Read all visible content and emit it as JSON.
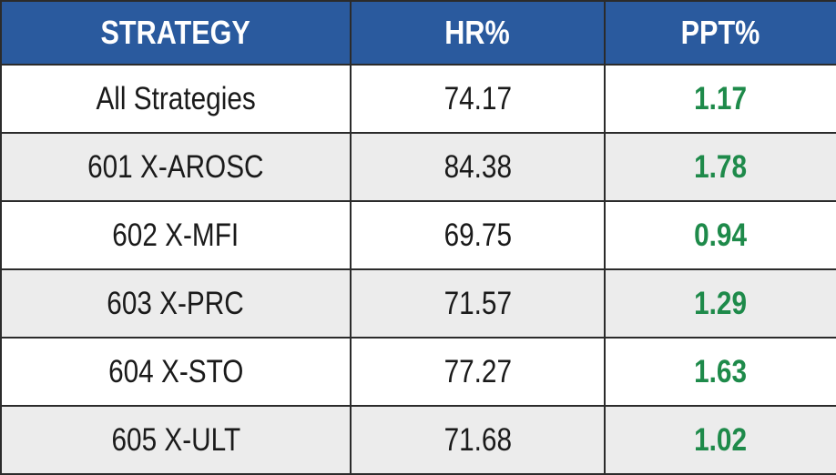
{
  "table": {
    "header": [
      "STRATEGY",
      "HR%",
      "PPT%"
    ],
    "rows": [
      [
        "All Strategies",
        "74.17",
        "1.17"
      ],
      [
        "601 X-AROSC",
        "84.38",
        "1.78"
      ],
      [
        "602 X-MFI",
        "69.75",
        "0.94"
      ],
      [
        "603 X-PRC",
        "71.57",
        "1.29"
      ],
      [
        "604 X-STO",
        "77.27",
        "1.63"
      ],
      [
        "605 X-ULT",
        "71.68",
        "1.02"
      ]
    ]
  }
}
